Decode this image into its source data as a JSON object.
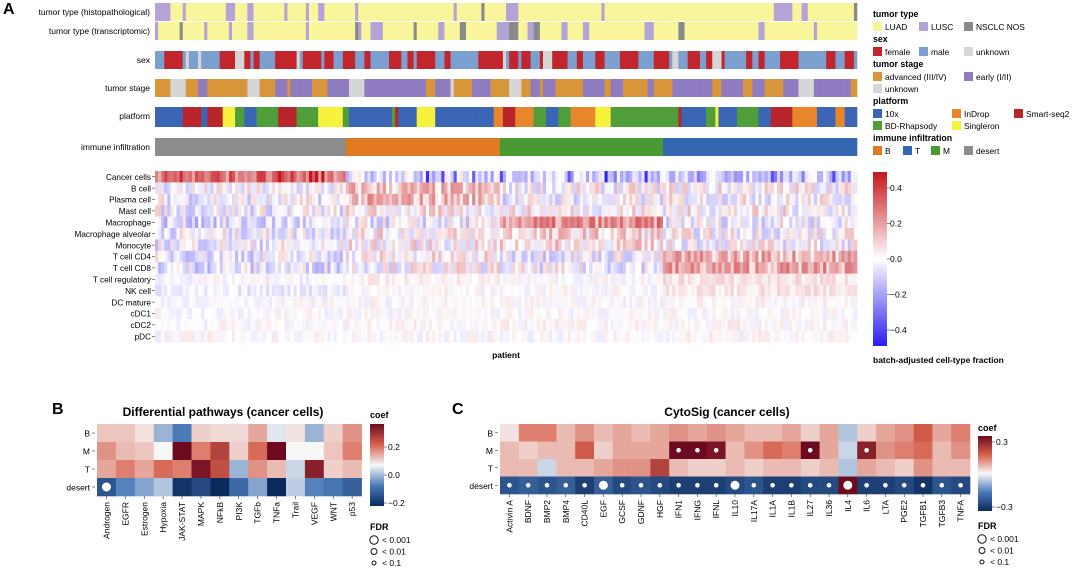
{
  "panel_a": {
    "letter": "A",
    "annotation_rows": [
      "tumor type (histopathological)",
      "tumor type (transcriptomic)",
      "sex",
      "tumor stage",
      "platform",
      "immune infiltration"
    ],
    "cell_rows": [
      "Cancer cells",
      "B cell",
      "Plasma cell",
      "Mast cell",
      "Macrophage",
      "Macrophage alveolar",
      "Monocyte",
      "T cell CD4",
      "T cell CD8",
      "T cell regulatory",
      "NK cell",
      "DC mature",
      "cDC1",
      "cDC2",
      "pDC"
    ],
    "xlabel": "patient",
    "legend": [
      {
        "title": "tumor type",
        "items": [
          {
            "label": "LUAD",
            "color": "#f8f59a"
          },
          {
            "label": "LUSC",
            "color": "#b3a3d6"
          },
          {
            "label": "NSCLC NOS",
            "color": "#8a8a8a"
          }
        ]
      },
      {
        "title": "sex",
        "items": [
          {
            "label": "female",
            "color": "#c2252b"
          },
          {
            "label": "male",
            "color": "#7b9fce"
          },
          {
            "label": "unknown",
            "color": "#d6d6d6"
          }
        ]
      },
      {
        "title": "tumor stage",
        "items": [
          {
            "label": "advanced (III/IV)",
            "color": "#d9953a"
          },
          {
            "label": "early (I/II)",
            "color": "#8f7bc0"
          },
          {
            "label": "unknown",
            "color": "#d6d6d6"
          }
        ]
      },
      {
        "title": "platform",
        "items": [
          {
            "label": "10x",
            "color": "#3b66b5"
          },
          {
            "label": "InDrop",
            "color": "#e8862b"
          },
          {
            "label": "Smart-seq2",
            "color": "#b8262c"
          },
          {
            "label": "BD-Rhapsody",
            "color": "#4f9e3a"
          },
          {
            "label": "Singleron",
            "color": "#f6f23c"
          }
        ]
      },
      {
        "title": "immune infiltration",
        "items": [
          {
            "label": "B",
            "color": "#e07b24"
          },
          {
            "label": "T",
            "color": "#3566b1"
          },
          {
            "label": "M",
            "color": "#4a9a34"
          },
          {
            "label": "desert",
            "color": "#8c8c8c"
          }
        ]
      }
    ],
    "colorbar": {
      "ticks": [
        "0.4",
        "0.2",
        "0.0",
        "−0.2",
        "−0.4"
      ],
      "label": "batch-adjusted cell-type fraction"
    }
  },
  "panel_b": {
    "letter": "B",
    "title": "Differential pathways (cancer cells)",
    "rows": [
      "B",
      "M",
      "T",
      "desert"
    ],
    "cols": [
      "Androgen",
      "EGFR",
      "Estrogen",
      "Hypoxia",
      "JAK-STAT",
      "MAPK",
      "NFkB",
      "PI3K",
      "TGFb",
      "TNFa",
      "Trail",
      "VEGF",
      "WNT",
      "p53"
    ],
    "coef_label": "coef",
    "coef_ticks": [
      "0.2",
      "0.0",
      "−0.2"
    ],
    "fdr_title": "FDR",
    "fdr_items": [
      "< 0.001",
      "< 0.01",
      "< 0.1"
    ]
  },
  "panel_c": {
    "letter": "C",
    "title": "CytoSig (cancer cells)",
    "rows": [
      "B",
      "M",
      "T",
      "desert"
    ],
    "cols": [
      "Activin A",
      "BDNF",
      "BMP2",
      "BMP4",
      "CD40L",
      "EGF",
      "GCSF",
      "GDNF",
      "HGF",
      "IFN1",
      "IFNG",
      "IFNL",
      "IL10",
      "IL17A",
      "IL1A",
      "IL1B",
      "IL27",
      "IL36",
      "IL4",
      "IL6",
      "LTA",
      "PGE2",
      "TGFB1",
      "TGFB3",
      "TNFA"
    ],
    "coef_label": "coef",
    "coef_ticks": [
      "0.3",
      "−0.3"
    ],
    "fdr_title": "FDR",
    "fdr_items": [
      "< 0.001",
      "< 0.01",
      "< 0.1"
    ]
  },
  "chart_data": [
    {
      "type": "heatmap",
      "title": "",
      "xlabel": "patient",
      "ylabel": "",
      "rows": [
        "Cancer cells",
        "B cell",
        "Plasma cell",
        "Mast cell",
        "Macrophage",
        "Macrophage alveolar",
        "Monocyte",
        "T cell CD4",
        "T cell CD8",
        "T cell regulatory",
        "NK cell",
        "DC mature",
        "cDC1",
        "cDC2",
        "pDC"
      ],
      "groups": [
        {
          "name": "desert",
          "n_patients": 62,
          "row_mean": [
            0.3,
            -0.02,
            -0.02,
            -0.02,
            -0.08,
            -0.02,
            -0.02,
            -0.04,
            -0.05,
            -0.01,
            -0.04,
            0.0,
            0.0,
            0.0,
            0.0
          ]
        },
        {
          "name": "B",
          "n_patients": 50,
          "row_mean": [
            -0.08,
            0.12,
            0.14,
            0.03,
            -0.04,
            0.03,
            0.02,
            0.02,
            0.01,
            0.02,
            0.01,
            0.0,
            0.0,
            0.01,
            0.0
          ]
        },
        {
          "name": "M",
          "n_patients": 53,
          "row_mean": [
            -0.1,
            0.0,
            -0.02,
            0.03,
            0.22,
            0.08,
            0.06,
            -0.02,
            -0.02,
            0.0,
            0.0,
            0.0,
            0.0,
            0.01,
            0.0
          ]
        },
        {
          "name": "T",
          "n_patients": 63,
          "row_mean": [
            -0.12,
            0.02,
            0.0,
            0.02,
            -0.02,
            0.0,
            0.0,
            0.16,
            0.18,
            0.06,
            0.05,
            0.01,
            0.0,
            0.01,
            0.01
          ]
        }
      ],
      "colorbar_range": [
        -0.5,
        0.5
      ]
    },
    {
      "type": "heatmap",
      "title": "Differential pathways (cancer cells)",
      "rows": [
        "B",
        "M",
        "T",
        "desert"
      ],
      "columns": [
        "Androgen",
        "EGFR",
        "Estrogen",
        "Hypoxia",
        "JAK-STAT",
        "MAPK",
        "NFkB",
        "PI3K",
        "TGFb",
        "TNFa",
        "Trail",
        "VEGF",
        "WNT",
        "p53"
      ],
      "values": [
        [
          0.05,
          0.05,
          0.02,
          -0.08,
          -0.15,
          0.04,
          0.03,
          0.03,
          0.08,
          -0.02,
          0.02,
          -0.08,
          0.04,
          0.1
        ],
        [
          0.1,
          0.06,
          0.05,
          0.0,
          0.3,
          0.12,
          0.2,
          0.04,
          0.14,
          0.3,
          0.0,
          0.0,
          0.05,
          0.12
        ],
        [
          0.08,
          0.12,
          0.08,
          0.14,
          0.12,
          0.28,
          0.18,
          -0.08,
          0.1,
          0.06,
          -0.04,
          0.26,
          0.04,
          0.06
        ],
        [
          -0.22,
          -0.14,
          -0.1,
          -0.06,
          -0.28,
          -0.24,
          -0.3,
          -0.18,
          -0.1,
          -0.32,
          -0.05,
          -0.14,
          -0.16,
          -0.2
        ]
      ],
      "fdr_marks": [
        {
          "row": "desert",
          "col": "Androgen",
          "fdr": "< 0.001"
        }
      ],
      "coef_range": [
        -0.3,
        0.3
      ]
    },
    {
      "type": "heatmap",
      "title": "CytoSig (cancer cells)",
      "rows": [
        "B",
        "M",
        "T",
        "desert"
      ],
      "columns": [
        "Activin A",
        "BDNF",
        "BMP2",
        "BMP4",
        "CD40L",
        "EGF",
        "GCSF",
        "GDNF",
        "HGF",
        "IFN1",
        "IFNG",
        "IFNL",
        "IL10",
        "IL17A",
        "IL1A",
        "IL1B",
        "IL27",
        "IL36",
        "IL4",
        "IL6",
        "LTA",
        "PGE2",
        "TGFB1",
        "TGFB3",
        "TNFA"
      ],
      "values": [
        [
          0.02,
          0.12,
          0.12,
          0.06,
          0.1,
          0.06,
          0.08,
          0.06,
          0.08,
          0.1,
          0.08,
          0.1,
          0.08,
          0.06,
          0.06,
          0.08,
          0.04,
          0.08,
          -0.06,
          0.04,
          0.08,
          0.1,
          0.16,
          0.08,
          0.12
        ],
        [
          0.06,
          0.04,
          0.06,
          0.06,
          0.16,
          0.04,
          0.08,
          0.08,
          0.08,
          0.3,
          0.3,
          0.28,
          0.06,
          0.1,
          0.14,
          0.12,
          0.3,
          0.08,
          -0.04,
          0.26,
          0.1,
          0.12,
          0.14,
          0.06,
          0.1
        ],
        [
          0.06,
          0.06,
          -0.04,
          0.06,
          0.06,
          0.08,
          0.1,
          0.1,
          0.2,
          0.06,
          0.04,
          0.04,
          0.06,
          0.04,
          0.06,
          0.06,
          0.04,
          0.06,
          -0.06,
          0.08,
          0.06,
          0.04,
          0.1,
          0.06,
          0.06
        ],
        [
          -0.22,
          -0.2,
          -0.22,
          -0.2,
          -0.26,
          -0.2,
          -0.24,
          -0.22,
          -0.24,
          -0.26,
          -0.26,
          -0.26,
          -0.24,
          -0.22,
          -0.26,
          -0.26,
          -0.24,
          -0.24,
          0.3,
          -0.26,
          -0.26,
          -0.24,
          -0.28,
          -0.22,
          -0.24
        ]
      ],
      "fdr_marks": [
        {
          "row": "M",
          "col": "IFN1",
          "fdr": "< 0.1"
        },
        {
          "row": "M",
          "col": "IFNG",
          "fdr": "< 0.1"
        },
        {
          "row": "M",
          "col": "IFNL",
          "fdr": "< 0.1"
        },
        {
          "row": "M",
          "col": "IL27",
          "fdr": "< 0.1"
        },
        {
          "row": "M",
          "col": "IL6",
          "fdr": "< 0.1"
        },
        {
          "row": "desert",
          "col": "Activin A",
          "fdr": "< 0.1"
        },
        {
          "row": "desert",
          "col": "BDNF",
          "fdr": "< 0.1"
        },
        {
          "row": "desert",
          "col": "BMP2",
          "fdr": "< 0.1"
        },
        {
          "row": "desert",
          "col": "BMP4",
          "fdr": "< 0.1"
        },
        {
          "row": "desert",
          "col": "CD40L",
          "fdr": "< 0.1"
        },
        {
          "row": "desert",
          "col": "EGF",
          "fdr": "< 0.001"
        },
        {
          "row": "desert",
          "col": "GCSF",
          "fdr": "< 0.1"
        },
        {
          "row": "desert",
          "col": "GDNF",
          "fdr": "< 0.1"
        },
        {
          "row": "desert",
          "col": "HGF",
          "fdr": "< 0.1"
        },
        {
          "row": "desert",
          "col": "IFN1",
          "fdr": "< 0.1"
        },
        {
          "row": "desert",
          "col": "IFNG",
          "fdr": "< 0.1"
        },
        {
          "row": "desert",
          "col": "IFNL",
          "fdr": "< 0.1"
        },
        {
          "row": "desert",
          "col": "IL10",
          "fdr": "< 0.001"
        },
        {
          "row": "desert",
          "col": "IL17A",
          "fdr": "< 0.1"
        },
        {
          "row": "desert",
          "col": "IL1A",
          "fdr": "< 0.1"
        },
        {
          "row": "desert",
          "col": "IL1B",
          "fdr": "< 0.1"
        },
        {
          "row": "desert",
          "col": "IL27",
          "fdr": "< 0.1"
        },
        {
          "row": "desert",
          "col": "IL36",
          "fdr": "< 0.1"
        },
        {
          "row": "desert",
          "col": "IL4",
          "fdr": "< 0.001"
        },
        {
          "row": "desert",
          "col": "IL6",
          "fdr": "< 0.1"
        },
        {
          "row": "desert",
          "col": "LTA",
          "fdr": "< 0.1"
        },
        {
          "row": "desert",
          "col": "PGE2",
          "fdr": "< 0.1"
        },
        {
          "row": "desert",
          "col": "TGFB1",
          "fdr": "< 0.1"
        },
        {
          "row": "desert",
          "col": "TGFB3",
          "fdr": "< 0.1"
        },
        {
          "row": "desert",
          "col": "TNFA",
          "fdr": "< 0.1"
        }
      ],
      "coef_range": [
        -0.3,
        0.3
      ]
    }
  ]
}
